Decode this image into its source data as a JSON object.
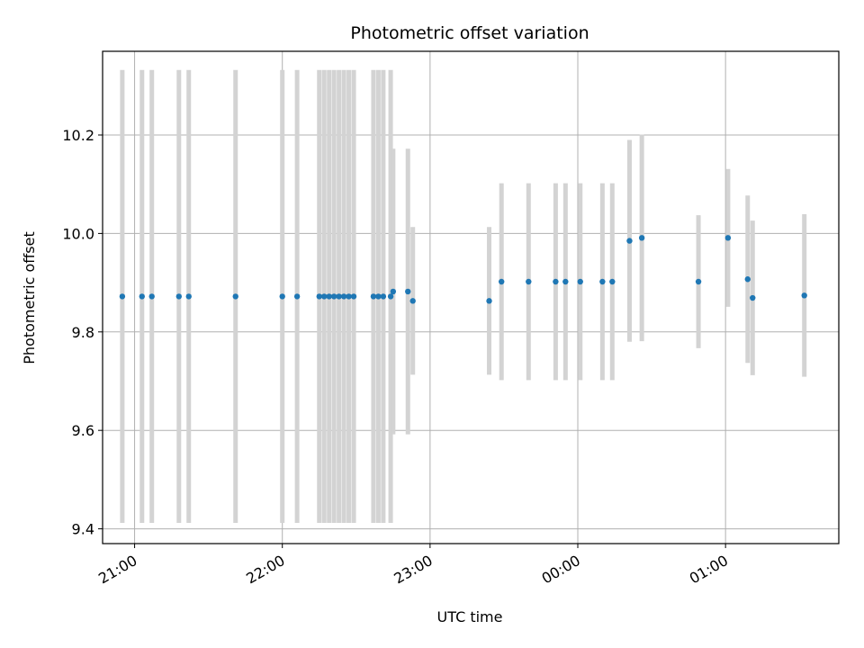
{
  "chart_data": {
    "type": "scatter",
    "title": "Photometric offset variation",
    "xlabel": "UTC time",
    "ylabel": "Photometric offset",
    "x_unit": "UTC time (HH:MM), times after midnight fall on the following day",
    "x_ticks": [
      "21:00",
      "22:00",
      "23:00",
      "00:00",
      "01:00"
    ],
    "y_ticks": [
      "9.4",
      "9.6",
      "9.8",
      "10.0",
      "10.2"
    ],
    "xlim": [
      "20:47",
      "01:46"
    ],
    "ylim": [
      9.37,
      10.37
    ],
    "grid": true,
    "legend": "none",
    "colors": {
      "point": "#1f77b4",
      "errorbar": "#d3d3d3",
      "grid": "#b0b0b0"
    },
    "points": [
      {
        "x": "20:55",
        "y": 9.872,
        "err": 0.46
      },
      {
        "x": "21:03",
        "y": 9.872,
        "err": 0.46
      },
      {
        "x": "21:07",
        "y": 9.872,
        "err": 0.46
      },
      {
        "x": "21:18",
        "y": 9.872,
        "err": 0.46
      },
      {
        "x": "21:22",
        "y": 9.872,
        "err": 0.46
      },
      {
        "x": "21:41",
        "y": 9.872,
        "err": 0.46
      },
      {
        "x": "22:00",
        "y": 9.872,
        "err": 0.46
      },
      {
        "x": "22:06",
        "y": 9.872,
        "err": 0.46
      },
      {
        "x": "22:15",
        "y": 9.872,
        "err": 0.46
      },
      {
        "x": "22:17",
        "y": 9.872,
        "err": 0.46
      },
      {
        "x": "22:19",
        "y": 9.872,
        "err": 0.46
      },
      {
        "x": "22:21",
        "y": 9.872,
        "err": 0.46
      },
      {
        "x": "22:23",
        "y": 9.872,
        "err": 0.46
      },
      {
        "x": "22:25",
        "y": 9.872,
        "err": 0.46
      },
      {
        "x": "22:27",
        "y": 9.872,
        "err": 0.46
      },
      {
        "x": "22:29",
        "y": 9.872,
        "err": 0.46
      },
      {
        "x": "22:37",
        "y": 9.872,
        "err": 0.46
      },
      {
        "x": "22:39",
        "y": 9.872,
        "err": 0.46
      },
      {
        "x": "22:41",
        "y": 9.872,
        "err": 0.46
      },
      {
        "x": "22:44",
        "y": 9.872,
        "err": 0.46
      },
      {
        "x": "22:45",
        "y": 9.882,
        "err": 0.29
      },
      {
        "x": "22:51",
        "y": 9.882,
        "err": 0.29
      },
      {
        "x": "22:53",
        "y": 9.863,
        "err": 0.15
      },
      {
        "x": "23:24",
        "y": 9.863,
        "err": 0.15
      },
      {
        "x": "23:29",
        "y": 9.902,
        "err": 0.2
      },
      {
        "x": "23:40",
        "y": 9.902,
        "err": 0.2
      },
      {
        "x": "23:51",
        "y": 9.902,
        "err": 0.2
      },
      {
        "x": "23:55",
        "y": 9.902,
        "err": 0.2
      },
      {
        "x": "00:01",
        "y": 9.902,
        "err": 0.2
      },
      {
        "x": "00:10",
        "y": 9.902,
        "err": 0.2
      },
      {
        "x": "00:14",
        "y": 9.902,
        "err": 0.2
      },
      {
        "x": "00:21",
        "y": 9.985,
        "err": 0.205
      },
      {
        "x": "00:26",
        "y": 9.991,
        "err": 0.21
      },
      {
        "x": "00:49",
        "y": 9.902,
        "err": 0.135
      },
      {
        "x": "01:01",
        "y": 9.991,
        "err": 0.14
      },
      {
        "x": "01:09",
        "y": 9.907,
        "err": 0.17
      },
      {
        "x": "01:11",
        "y": 9.869,
        "err": 0.157
      },
      {
        "x": "01:32",
        "y": 9.874,
        "err": 0.165
      }
    ]
  }
}
